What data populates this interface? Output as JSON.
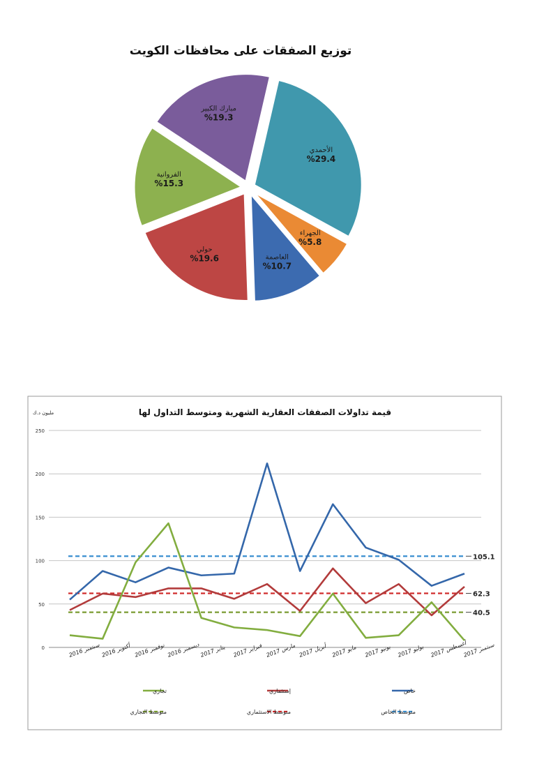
{
  "chart_data": [
    {
      "type": "pie",
      "title": "توزيع الصفقات على محافظات الكويت",
      "slices": [
        {
          "label": "الأحمدي",
          "value": 29.4,
          "value_label": "%29.4",
          "color": "#4098ad"
        },
        {
          "label": "الجهراء",
          "value": 5.8,
          "value_label": "%5.8",
          "color": "#ea8a34"
        },
        {
          "label": "العاصمة",
          "value": 10.7,
          "value_label": "%10.7",
          "color": "#3c6bb0"
        },
        {
          "label": "حولي",
          "value": 19.6,
          "value_label": "%19.6",
          "color": "#bd4644"
        },
        {
          "label": "الفروانية",
          "value": 15.3,
          "value_label": "%15.3",
          "color": "#8db14f"
        },
        {
          "label": "مبارك الكبير",
          "value": 19.3,
          "value_label": "%19.3",
          "color": "#7a5c9b"
        }
      ]
    },
    {
      "type": "line",
      "title": "قيمة تداولات الصفقات العقارية الشهرية ومتوسط التداول لها",
      "ylabel": "مليون د.ك",
      "ylim": [
        0,
        250
      ],
      "yticks": [
        "0",
        "50",
        "100",
        "150",
        "200",
        "250"
      ],
      "grid": true,
      "legend_position": "bottom",
      "categories": [
        "سبتمبر 2016",
        "أكتوبر 2016",
        "نوفمبر 2016",
        "ديسمبر 2016",
        "يناير 2017",
        "فبراير 2017",
        "مارس 2017",
        "أبريل 2017",
        "مايو 2017",
        "يونيو 2017",
        "يوليو 2017",
        "أغسطس 2017",
        "سبتمبر 2017"
      ],
      "series": [
        {
          "name": "خاص",
          "color": "#3467aa",
          "values": [
            55,
            88,
            75,
            92,
            83,
            85,
            212,
            88,
            165,
            115,
            101,
            71,
            85
          ]
        },
        {
          "name": "إستثماري",
          "color": "#b23b3b",
          "values": [
            43,
            62,
            58,
            68,
            68,
            56,
            73,
            42,
            91,
            51,
            73,
            37,
            70
          ]
        },
        {
          "name": "تجاري",
          "color": "#82ad3f",
          "values": [
            14,
            10,
            98,
            143,
            34,
            23,
            20,
            13,
            62,
            11,
            14,
            52,
            8
          ]
        }
      ],
      "averages": [
        {
          "name": "متوسط الخاص",
          "color": "#3a8fd0",
          "value": 105.1,
          "value_label": "105.1"
        },
        {
          "name": "متوسط الاستثماري",
          "color": "#d02c2c",
          "value": 62.3,
          "value_label": "62.3"
        },
        {
          "name": "متوسط التجاري",
          "color": "#7a9c30",
          "value": 40.5,
          "value_label": "40.5"
        }
      ]
    }
  ]
}
